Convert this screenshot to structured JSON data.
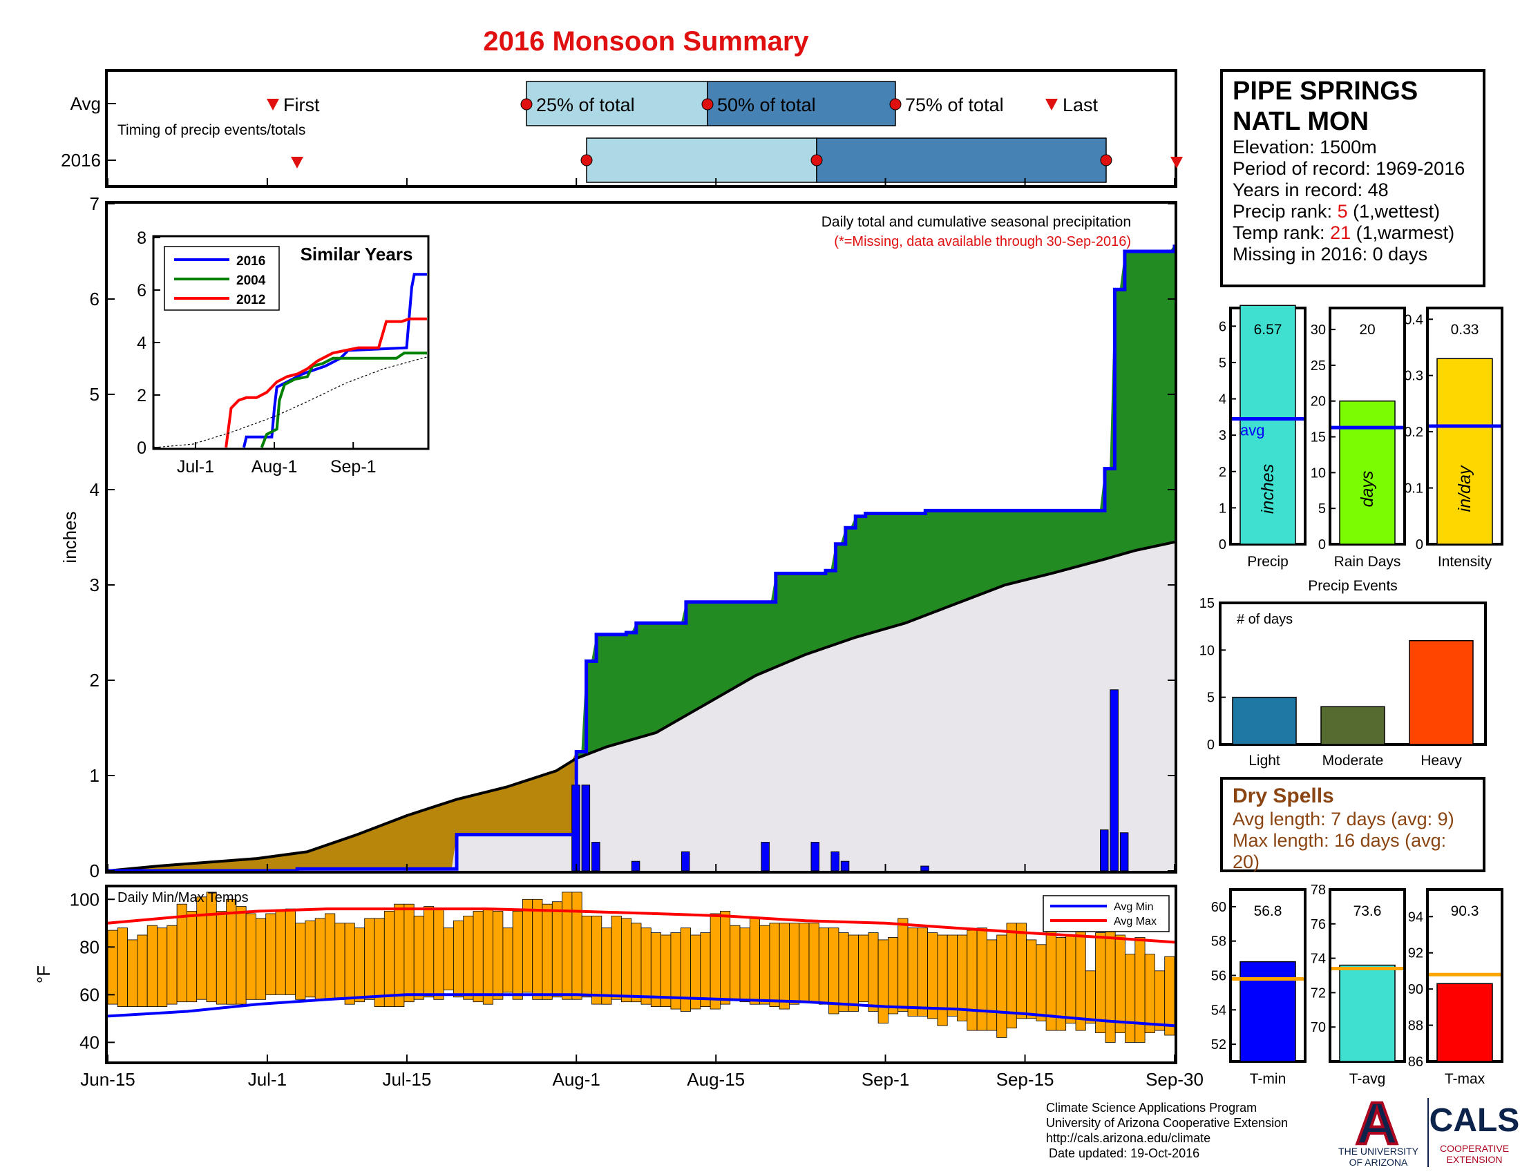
{
  "title": "2016 Monsoon Summary",
  "timing": {
    "row_avg": "Avg",
    "row_year": "2016",
    "subtitle": "Timing of precip events/totals",
    "labels": {
      "first": "First",
      "p25": "25% of total",
      "p50": "50% of total",
      "p75": "75% of total",
      "last": "Last"
    },
    "avg": {
      "first": "Jul-2",
      "p25": "Jul-28",
      "p50": "Aug-11",
      "p75": "Sep-1",
      "last": "Sep-12"
    },
    "y2016": {
      "first": "Jul-4",
      "p25": "Aug-1",
      "p50": "Aug-23",
      "p75": "Sep-22",
      "last": "Sep-30"
    }
  },
  "station": {
    "name_line1": "PIPE SPRINGS",
    "name_line2": "NATL MON",
    "elevation": "Elevation: 1500m",
    "period": "Period of record: 1969-2016",
    "years": "Years in record: 48",
    "precip_rank_label": "Precip rank:",
    "precip_rank": "5",
    "precip_rank_note": "(1,wettest)",
    "temp_rank_label": "Temp rank:",
    "temp_rank": "21",
    "temp_rank_note": "(1,warmest)",
    "missing": "Missing in 2016: 0 days"
  },
  "chart_data": [
    {
      "type": "area",
      "name": "main-precip",
      "title": "Daily total and cumulative seasonal precipitation",
      "subtitle": "(*=Missing, data available through 30-Sep-2016)",
      "ylabel": "inches",
      "ylim": [
        0,
        7
      ],
      "yticks": [
        0,
        1,
        2,
        3,
        4,
        5,
        6,
        7
      ],
      "x_range_days": [
        0,
        107
      ],
      "x_ticks": [
        {
          "day": 0,
          "label": "Jun-15"
        },
        {
          "day": 16,
          "label": "Jul-1"
        },
        {
          "day": 30,
          "label": "Jul-15"
        },
        {
          "day": 47,
          "label": "Aug-1"
        },
        {
          "day": 61,
          "label": "Aug-15"
        },
        {
          "day": 78,
          "label": "Sep-1"
        },
        {
          "day": 92,
          "label": "Sep-15"
        },
        {
          "day": 107,
          "label": "Sep-30"
        }
      ],
      "series": [
        {
          "name": "2016 cumulative",
          "color": "#0000ff",
          "steps": [
            [
              0,
              0
            ],
            [
              19,
              0.02
            ],
            [
              35,
              0.38
            ],
            [
              46,
              0.38
            ],
            [
              47,
              1.25
            ],
            [
              48,
              2.2
            ],
            [
              49,
              2.48
            ],
            [
              52,
              2.5
            ],
            [
              53,
              2.6
            ],
            [
              57,
              2.6
            ],
            [
              58,
              2.82
            ],
            [
              66,
              2.82
            ],
            [
              67,
              3.12
            ],
            [
              71,
              3.12
            ],
            [
              72,
              3.15
            ],
            [
              73,
              3.43
            ],
            [
              74,
              3.6
            ],
            [
              75,
              3.72
            ],
            [
              76,
              3.75
            ],
            [
              82,
              3.78
            ],
            [
              99,
              3.78
            ],
            [
              100,
              4.22
            ],
            [
              101,
              6.1
            ],
            [
              102,
              6.5
            ],
            [
              107,
              6.57
            ]
          ]
        },
        {
          "name": "Average cumulative",
          "color": "#000000",
          "points": [
            [
              0,
              0
            ],
            [
              5,
              0.05
            ],
            [
              10,
              0.09
            ],
            [
              15,
              0.13
            ],
            [
              20,
              0.2
            ],
            [
              25,
              0.38
            ],
            [
              30,
              0.58
            ],
            [
              35,
              0.75
            ],
            [
              40,
              0.88
            ],
            [
              45,
              1.05
            ],
            [
              47,
              1.18
            ],
            [
              50,
              1.3
            ],
            [
              55,
              1.45
            ],
            [
              60,
              1.75
            ],
            [
              65,
              2.05
            ],
            [
              70,
              2.27
            ],
            [
              75,
              2.45
            ],
            [
              80,
              2.6
            ],
            [
              85,
              2.8
            ],
            [
              90,
              3.0
            ],
            [
              95,
              3.13
            ],
            [
              100,
              3.27
            ],
            [
              103,
              3.36
            ],
            [
              107,
              3.45
            ]
          ]
        }
      ],
      "daily_bars": [
        [
          47,
          0.9
        ],
        [
          48,
          0.9
        ],
        [
          49,
          0.3
        ],
        [
          53,
          0.1
        ],
        [
          58,
          0.2
        ],
        [
          66,
          0.3
        ],
        [
          71,
          0.3
        ],
        [
          73,
          0.2
        ],
        [
          74,
          0.1
        ],
        [
          82,
          0.05
        ],
        [
          100,
          0.43
        ],
        [
          101,
          1.9
        ],
        [
          102,
          0.4
        ]
      ]
    },
    {
      "type": "line",
      "name": "similar-years",
      "title": "Similar Years",
      "ylim": [
        0,
        8
      ],
      "yticks": [
        0,
        2,
        4,
        6,
        8
      ],
      "x_ticks": [
        {
          "day": 16,
          "label": "Jul-1"
        },
        {
          "day": 47,
          "label": "Aug-1"
        },
        {
          "day": 78,
          "label": "Sep-1"
        }
      ],
      "series": [
        {
          "name": "2016",
          "color": "#0000ff",
          "points": [
            [
              35,
              0
            ],
            [
              36,
              0.4
            ],
            [
              46,
              0.4
            ],
            [
              47,
              1.5
            ],
            [
              48,
              2.3
            ],
            [
              52,
              2.5
            ],
            [
              58,
              2.8
            ],
            [
              67,
              3.1
            ],
            [
              73,
              3.4
            ],
            [
              76,
              3.7
            ],
            [
              99,
              3.8
            ],
            [
              101,
              6.1
            ],
            [
              102,
              6.6
            ],
            [
              107,
              6.6
            ]
          ]
        },
        {
          "name": "2004",
          "color": "#008000",
          "points": [
            [
              42,
              0
            ],
            [
              44,
              0.5
            ],
            [
              48,
              0.7
            ],
            [
              49,
              1.8
            ],
            [
              51,
              2.4
            ],
            [
              55,
              2.6
            ],
            [
              60,
              2.7
            ],
            [
              62,
              3.1
            ],
            [
              66,
              3.2
            ],
            [
              70,
              3.4
            ],
            [
              80,
              3.4
            ],
            [
              95,
              3.4
            ],
            [
              98,
              3.6
            ],
            [
              107,
              3.6
            ]
          ]
        },
        {
          "name": "2012",
          "color": "#ff0000",
          "points": [
            [
              28,
              0
            ],
            [
              30,
              1.5
            ],
            [
              33,
              1.8
            ],
            [
              36,
              1.9
            ],
            [
              40,
              1.9
            ],
            [
              44,
              2.1
            ],
            [
              48,
              2.5
            ],
            [
              52,
              2.7
            ],
            [
              56,
              2.8
            ],
            [
              60,
              3.0
            ],
            [
              64,
              3.3
            ],
            [
              70,
              3.6
            ],
            [
              80,
              3.8
            ],
            [
              88,
              3.8
            ],
            [
              91,
              4.8
            ],
            [
              97,
              4.8
            ],
            [
              100,
              4.9
            ],
            [
              107,
              4.9
            ]
          ]
        },
        {
          "name": "Average",
          "color": "#000000",
          "points": [
            [
              0,
              0
            ],
            [
              15,
              0.13
            ],
            [
              30,
              0.58
            ],
            [
              47,
              1.18
            ],
            [
              60,
              1.75
            ],
            [
              75,
              2.45
            ],
            [
              90,
              3.0
            ],
            [
              107,
              3.45
            ]
          ]
        }
      ]
    },
    {
      "type": "bar",
      "name": "season-stats",
      "categories": [
        "Precip",
        "Rain Days",
        "Intensity"
      ],
      "panels": [
        {
          "category": "Precip",
          "value": 6.57,
          "label": "6.57",
          "avg": 3.45,
          "avg_label": "avg",
          "unit": "inches",
          "ylim": [
            0,
            6.5
          ],
          "yticks": [
            0,
            1,
            2,
            3,
            4,
            5,
            6
          ],
          "color": "#40e0d0"
        },
        {
          "category": "Rain Days",
          "value": 20,
          "label": "20",
          "avg": 16.3,
          "unit": "days",
          "ylim": [
            0,
            33
          ],
          "yticks": [
            0,
            5,
            10,
            15,
            20,
            25,
            30
          ],
          "color": "#7cfc00"
        },
        {
          "category": "Intensity",
          "value": 0.33,
          "label": "0.33",
          "avg": 0.21,
          "unit": "in/day",
          "ylim": [
            0,
            0.42
          ],
          "yticks": [
            0,
            0.1,
            0.2,
            0.3,
            0.4
          ],
          "color": "#ffd700"
        }
      ]
    },
    {
      "type": "bar",
      "name": "precip-events",
      "title": "Precip Events",
      "ylabel": "# of days",
      "categories": [
        "Light",
        "Moderate",
        "Heavy"
      ],
      "values": [
        5,
        4,
        11
      ],
      "colors": [
        "#1f77a4",
        "#556b2f",
        "#ff4500"
      ],
      "ylim": [
        0,
        15
      ],
      "yticks": [
        0,
        5,
        10,
        15
      ]
    },
    {
      "type": "bar",
      "name": "daily-temps",
      "title": "Daily Min/Max Temps",
      "ylabel": "°F",
      "ylim": [
        32,
        105
      ],
      "yticks": [
        40,
        60,
        80,
        100
      ],
      "legend": [
        "Avg Min",
        "Avg Max"
      ],
      "tmax": [
        87,
        88,
        83,
        85,
        89,
        88,
        89,
        98,
        95,
        101,
        103,
        95,
        100,
        97,
        94,
        92,
        94,
        95,
        96,
        90,
        91,
        92,
        94,
        90,
        90,
        88,
        92,
        92,
        95,
        98,
        98,
        93,
        97,
        96,
        88,
        91,
        93,
        95,
        96,
        95,
        88,
        95,
        100,
        100,
        98,
        99,
        103,
        103,
        93,
        93,
        88,
        93,
        92,
        90,
        88,
        86,
        85,
        86,
        88,
        85,
        86,
        94,
        95,
        89,
        88,
        92,
        89,
        90,
        90,
        90,
        90,
        90,
        88,
        88,
        86,
        85,
        85,
        86,
        83,
        84,
        92,
        88,
        88,
        86,
        85,
        85,
        85,
        87,
        88,
        83,
        85,
        90,
        90,
        83,
        81,
        88,
        84,
        85,
        88,
        70,
        86,
        90,
        85,
        77,
        84,
        77,
        70,
        76
      ],
      "tmin": [
        56,
        55,
        55,
        55,
        55,
        55,
        56,
        57,
        57,
        58,
        57,
        56,
        56,
        56,
        58,
        58,
        60,
        60,
        60,
        58,
        59,
        58,
        58,
        58,
        56,
        57,
        58,
        55,
        55,
        55,
        57,
        58,
        59,
        58,
        62,
        59,
        58,
        57,
        56,
        58,
        61,
        58,
        61,
        58,
        58,
        59,
        58,
        58,
        59,
        56,
        56,
        58,
        57,
        57,
        56,
        55,
        55,
        54,
        53,
        54,
        55,
        54,
        56,
        58,
        57,
        56,
        56,
        55,
        54,
        56,
        57,
        57,
        56,
        52,
        53,
        53,
        57,
        53,
        48,
        52,
        53,
        51,
        51,
        50,
        47,
        51,
        49,
        45,
        45,
        45,
        42,
        46,
        50,
        50,
        49,
        45,
        45,
        48,
        45,
        48,
        44,
        40,
        44,
        40,
        40,
        44,
        45,
        43
      ],
      "avg_min": {
        "color": "#0000ff",
        "points": [
          [
            0,
            51
          ],
          [
            8,
            53
          ],
          [
            15,
            56
          ],
          [
            22,
            58
          ],
          [
            30,
            60
          ],
          [
            38,
            60
          ],
          [
            47,
            60
          ],
          [
            55,
            59
          ],
          [
            62,
            58
          ],
          [
            70,
            57
          ],
          [
            78,
            55
          ],
          [
            85,
            54
          ],
          [
            92,
            52
          ],
          [
            100,
            49
          ],
          [
            107,
            47
          ]
        ]
      },
      "avg_max": {
        "color": "#ff0000",
        "points": [
          [
            0,
            90
          ],
          [
            8,
            93
          ],
          [
            15,
            95
          ],
          [
            22,
            96
          ],
          [
            30,
            96
          ],
          [
            38,
            96
          ],
          [
            47,
            95
          ],
          [
            55,
            94
          ],
          [
            62,
            93
          ],
          [
            70,
            91
          ],
          [
            78,
            90
          ],
          [
            85,
            88
          ],
          [
            92,
            86
          ],
          [
            100,
            84
          ],
          [
            107,
            82
          ]
        ]
      }
    },
    {
      "type": "bar",
      "name": "season-temps",
      "categories": [
        "T-min",
        "T-avg",
        "T-max"
      ],
      "panels": [
        {
          "category": "T-min",
          "value": 56.8,
          "label": "56.8",
          "avg": 55.8,
          "ylim": [
            51,
            61
          ],
          "yticks": [
            52,
            54,
            56,
            58,
            60
          ],
          "color": "#0000ff"
        },
        {
          "category": "T-avg",
          "value": 73.6,
          "label": "73.6",
          "avg": 73.4,
          "ylim": [
            68,
            78
          ],
          "yticks": [
            70,
            72,
            74,
            76,
            78
          ],
          "color": "#40e0d0"
        },
        {
          "category": "T-max",
          "value": 90.3,
          "label": "90.3",
          "avg": 90.8,
          "ylim": [
            86,
            95.5
          ],
          "yticks": [
            86,
            88,
            90,
            92,
            94
          ],
          "color": "#ff0000"
        }
      ]
    }
  ],
  "dry_spells": {
    "title": "Dry Spells",
    "avg_length": "Avg length: 7 days (avg: 9)",
    "max_length": "Max length: 16 days (avg: 20)"
  },
  "credits": {
    "line1": "Climate Science Applications Program",
    "line2": "University of Arizona Cooperative Extension",
    "line3": "http://cals.arizona.edu/climate",
    "line4": "Date updated: 19-Oct-2016"
  },
  "logos": {
    "ua_mark": "A",
    "ua_text1": "THE UNIVERSITY",
    "ua_text2": "OF ARIZONA",
    "cals": "CALS",
    "cals_sub1": "COOPERATIVE",
    "cals_sub2": "EXTENSION"
  },
  "colors": {
    "title_red": "#e01010",
    "above_avg_fill": "#228b22",
    "below_avg_fill": "#b8860b",
    "avg_fill": "#e8e6ea",
    "timing_light": "#add8e6",
    "timing_dark": "#4682b4",
    "temp_bar": "#ffa500",
    "dry_brown": "#8B4513",
    "ua_navy": "#0c234b",
    "ua_red": "#ab0520"
  }
}
